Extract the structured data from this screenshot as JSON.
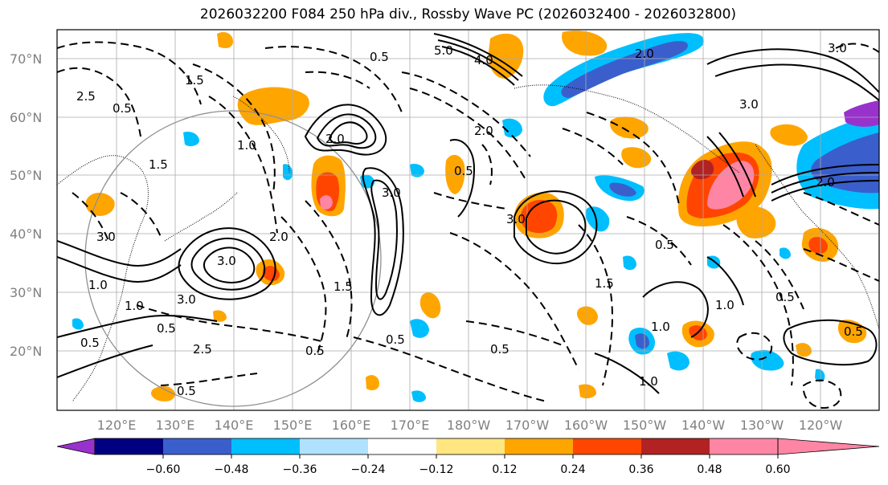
{
  "title": "2026032200 F084 250 hPa div., Rossby Wave PC (2026032400 - 2026032800)",
  "lat_labels": [
    "70°N",
    "60°N",
    "50°N",
    "40°N",
    "30°N",
    "20°N"
  ],
  "lon_labels": [
    "120°E",
    "130°E",
    "140°E",
    "150°E",
    "160°E",
    "170°E",
    "180°W",
    "170°W",
    "160°W",
    "150°W",
    "140°W",
    "130°W",
    "120°W"
  ],
  "colorbar": {
    "ticks": [
      "−0.60",
      "−0.48",
      "−0.36",
      "−0.24",
      "−0.12",
      "0.12",
      "0.24",
      "0.36",
      "0.48",
      "0.60"
    ],
    "colors": [
      "#9932cc",
      "#000080",
      "#3a5fcd",
      "#00bfff",
      "#b0e2ff",
      "#ffffff",
      "#ffe680",
      "#ffa500",
      "#ff4500",
      "#b22222",
      "#ff85a5"
    ]
  },
  "contour_labels": [
    "5.0",
    "4.0",
    "2.0",
    "0.5",
    "1.5",
    "2.5",
    "0.5",
    "2.0",
    "3.0",
    "1.5",
    "3.0",
    "2.0",
    "0.5",
    "3.0",
    "3.0",
    "2.0",
    "1.0",
    "3.0",
    "1.0",
    "0.5",
    "0.5",
    "0.5",
    "1.5",
    "0.5",
    "0.5",
    "1.0",
    "0.5",
    "3.0",
    "2.0",
    "1.0",
    "0.5",
    "0.5",
    "2.5",
    "3.0",
    "1.5",
    "0.5",
    "1.0",
    "1.0"
  ]
}
